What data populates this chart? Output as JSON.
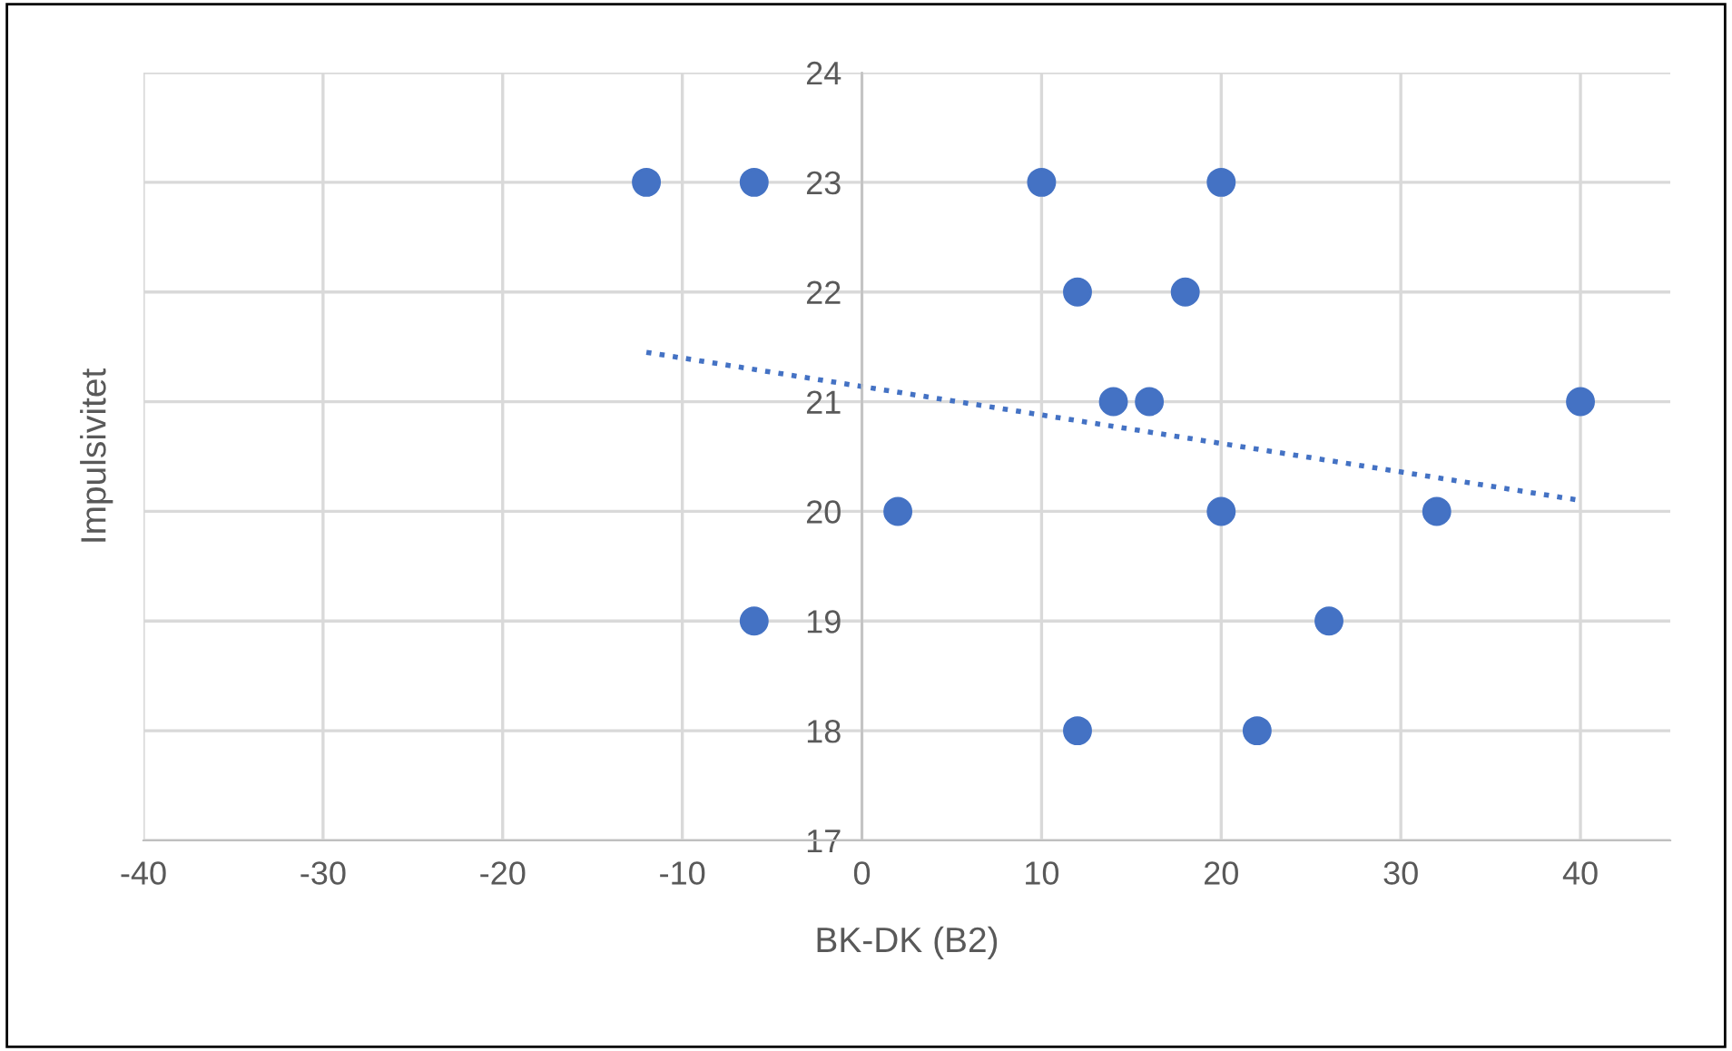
{
  "chart_data": {
    "type": "scatter",
    "xlabel": "BK-DK (B2)",
    "ylabel": "Impulsivitet",
    "series": [
      {
        "color": "#4472c4",
        "x": [
          -12,
          -6,
          10,
          20,
          12,
          18,
          14,
          16,
          40,
          2,
          20,
          32,
          -6,
          26,
          12,
          22
        ],
        "values": [
          23,
          23,
          23,
          23,
          22,
          22,
          21,
          21,
          21,
          20,
          20,
          20,
          19,
          19,
          18,
          18
        ],
        "marker": "circle"
      },
      {
        "type": "line",
        "color": "#4472c4",
        "x": [
          -12,
          40
        ],
        "values": [
          21.45,
          20.1
        ],
        "line_style": "dotted",
        "marker": "none"
      }
    ],
    "xlim": [
      -40,
      45
    ],
    "xticks": [
      -40,
      -30,
      -20,
      -10,
      0,
      10,
      20,
      30,
      40
    ],
    "ylim": [
      17,
      24
    ],
    "yticks": [
      17,
      18,
      19,
      20,
      21,
      22,
      23,
      24
    ],
    "grid": true,
    "legend": false
  }
}
